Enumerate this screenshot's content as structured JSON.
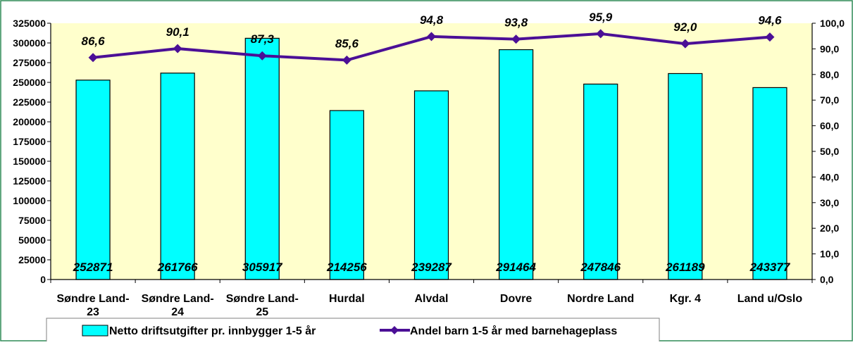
{
  "chart_data": {
    "type": "bar",
    "categories": [
      "Søndre Land-23",
      "Søndre Land-24",
      "Søndre Land-25",
      "Hurdal",
      "Alvdal",
      "Dovre",
      "Nordre Land",
      "Kgr. 4",
      "Land u/Oslo"
    ],
    "category_lines": [
      [
        "Søndre Land-",
        "23"
      ],
      [
        "Søndre Land-",
        "24"
      ],
      [
        "Søndre Land-",
        "25"
      ],
      [
        "Hurdal"
      ],
      [
        "Alvdal"
      ],
      [
        "Dovre"
      ],
      [
        "Nordre Land"
      ],
      [
        "Kgr. 4"
      ],
      [
        "Land u/Oslo"
      ]
    ],
    "series": [
      {
        "name": "Netto driftsutgifter pr. innbygger 1-5 år",
        "kind": "bar",
        "axis": "left",
        "values": [
          252871,
          261766,
          305917,
          214256,
          239287,
          291464,
          247846,
          261189,
          243377
        ],
        "labels": [
          "252871",
          "261766",
          "305917",
          "214256",
          "239287",
          "291464",
          "247846",
          "261189",
          "243377"
        ]
      },
      {
        "name": "Andel barn 1-5 år med barnehageplass",
        "kind": "line",
        "axis": "right",
        "values": [
          86.6,
          90.1,
          87.3,
          85.6,
          94.8,
          93.8,
          95.9,
          92.0,
          94.6
        ],
        "labels": [
          "86,6",
          "90,1",
          "87,3",
          "85,6",
          "94,8",
          "93,8",
          "95,9",
          "92,0",
          "94,6"
        ]
      }
    ],
    "y_left": {
      "ylim": [
        0,
        325000
      ],
      "ticks": [
        0,
        25000,
        50000,
        75000,
        100000,
        125000,
        150000,
        175000,
        200000,
        225000,
        250000,
        275000,
        300000,
        325000
      ],
      "tick_labels": [
        "0",
        "25000",
        "50000",
        "75000",
        "100000",
        "125000",
        "150000",
        "175000",
        "200000",
        "225000",
        "250000",
        "275000",
        "300000",
        "325000"
      ]
    },
    "y_right": {
      "ylim": [
        0,
        100
      ],
      "ticks": [
        0,
        10,
        20,
        30,
        40,
        50,
        60,
        70,
        80,
        90,
        100
      ],
      "tick_labels": [
        "0,0",
        "10,0",
        "20,0",
        "30,0",
        "40,0",
        "50,0",
        "60,0",
        "70,0",
        "80,0",
        "90,0",
        "100,0"
      ]
    },
    "title": "",
    "xlabel": "",
    "ylabel": "",
    "grid": false,
    "legend_position": "bottom",
    "colors": {
      "plot_background": "#ffffcc",
      "bar_fill": "#00ffff",
      "bar_stroke": "#000000",
      "line": "#4b0f96",
      "frame": "#2e8b57"
    }
  }
}
